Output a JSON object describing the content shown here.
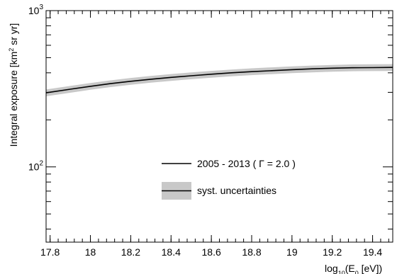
{
  "chart_data": {
    "type": "line",
    "title": "",
    "ylabel_parts": [
      "Integral exposure [km",
      "2",
      " sr yr]"
    ],
    "xlabel_parts": [
      "log",
      "10",
      "(E",
      "0",
      " [eV])"
    ],
    "xlim": [
      17.78,
      19.5
    ],
    "ylim": [
      33,
      1000
    ],
    "yscale": "log",
    "grid": false,
    "x_ticks": [
      17.8,
      18,
      18.2,
      18.4,
      18.6,
      18.8,
      19,
      19.2,
      19.4
    ],
    "x_tick_labels": [
      "17.8",
      "18",
      "18.2",
      "18.4",
      "18.6",
      "18.8",
      "19",
      "19.2",
      "19.4"
    ],
    "y_ticks": [
      {
        "value": 100,
        "base": "10",
        "exp": "2"
      },
      {
        "value": 1000,
        "base": "10",
        "exp": "3"
      }
    ],
    "series": [
      {
        "name": "2005 - 2013 ( Γ = 2.0 )",
        "color": "#000000",
        "x": [
          17.78,
          17.9,
          18.0,
          18.1,
          18.2,
          18.3,
          18.4,
          18.5,
          18.6,
          18.7,
          18.8,
          18.9,
          19.0,
          19.1,
          19.2,
          19.3,
          19.4,
          19.5
        ],
        "y": [
          298,
          314,
          328,
          341,
          353,
          364,
          374,
          383,
          392,
          400,
          407,
          413,
          419,
          424,
          428,
          431,
          432,
          433
        ]
      }
    ],
    "band": {
      "name": "syst. uncertainties",
      "color": "#c8c8c8",
      "relative_halfwidth": 0.05
    },
    "legend": {
      "placement": "center",
      "items": [
        "2005 - 2013 ( Γ = 2.0 )",
        "syst. uncertainties"
      ]
    }
  }
}
